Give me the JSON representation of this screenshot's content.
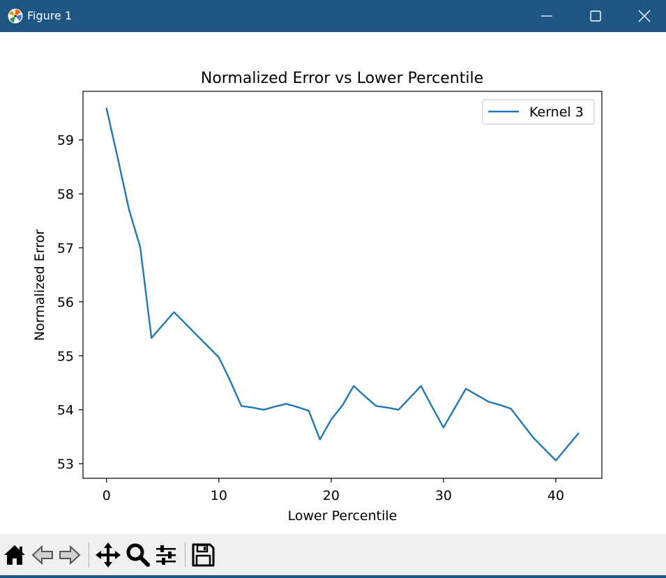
{
  "window": {
    "title": "Figure 1",
    "title_bar_color": "#1f5583"
  },
  "window_controls": {
    "minimize_icon": "minimize-icon",
    "maximize_icon": "maximize-icon",
    "close_icon": "close-icon"
  },
  "toolbar": {
    "items": [
      "home-icon",
      "back-arrow-icon",
      "forward-arrow-icon",
      "pan-icon",
      "zoom-icon",
      "configure-subplots-icon",
      "save-icon"
    ]
  },
  "chart_data": {
    "type": "line",
    "title": "Normalized Error vs Lower Percentile",
    "xlabel": "Lower Percentile",
    "ylabel": "Normalized Error",
    "xlim": [
      -2.1,
      44.1
    ],
    "ylim": [
      52.73,
      59.9
    ],
    "xticks": [
      0,
      10,
      20,
      30,
      40
    ],
    "yticks": [
      53,
      54,
      55,
      56,
      57,
      58,
      59
    ],
    "grid": false,
    "legend_position": "top-right",
    "series": [
      {
        "name": "Kernel 3",
        "color": "#1f77b4",
        "x": [
          0,
          1,
          2,
          3,
          4,
          5,
          6,
          7,
          8,
          9,
          10,
          11,
          12,
          13,
          14,
          15,
          16,
          17,
          18,
          19,
          20,
          21,
          22,
          23,
          24,
          25,
          26,
          27,
          28,
          29,
          30,
          31,
          32,
          33,
          34,
          35,
          36,
          37,
          38,
          39,
          40,
          41,
          42
        ],
        "y": [
          59.58,
          58.66,
          57.71,
          57.01,
          55.33,
          55.57,
          55.81,
          55.6,
          55.39,
          55.18,
          54.97,
          54.54,
          54.07,
          54.04,
          54.0,
          54.06,
          54.11,
          54.05,
          53.98,
          53.45,
          53.82,
          54.08,
          54.44,
          54.25,
          54.07,
          54.04,
          54.0,
          54.22,
          54.44,
          54.05,
          53.67,
          54.03,
          54.39,
          54.27,
          54.15,
          54.09,
          54.02,
          53.75,
          53.48,
          53.27,
          53.06,
          53.31,
          53.56
        ]
      }
    ]
  }
}
